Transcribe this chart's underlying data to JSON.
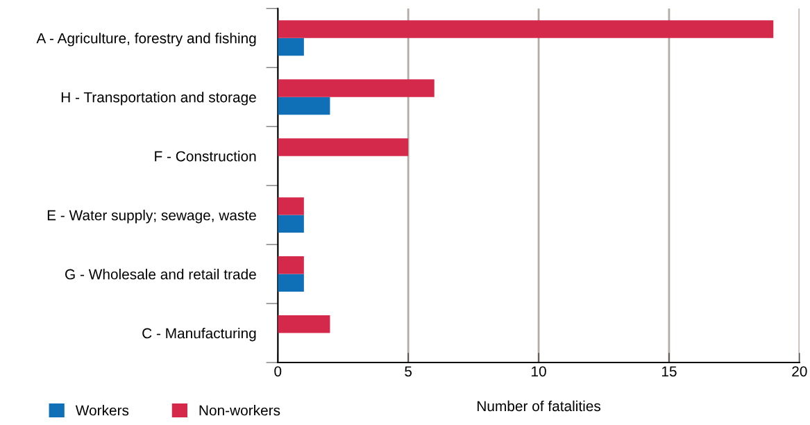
{
  "chart_data": {
    "type": "bar",
    "orientation": "horizontal",
    "xlabel": "Number of fatalities",
    "categories": [
      "A - Agriculture, forestry and fishing",
      "H - Transportation and storage",
      "F - Construction",
      "E - Water supply; sewage, waste",
      "G - Wholesale and retail trade",
      "C - Manufacturing"
    ],
    "series": [
      {
        "name": "Workers",
        "color": "#0f70b7",
        "values": [
          1,
          2,
          0,
          1,
          1,
          0
        ]
      },
      {
        "name": "Non-workers",
        "color": "#d4294b",
        "values": [
          19,
          6,
          5,
          1,
          1,
          2
        ]
      }
    ],
    "xlim": [
      0,
      20
    ],
    "xticks": [
      0,
      5,
      10,
      15,
      20
    ],
    "grid": "x",
    "legend": "bottom left"
  }
}
